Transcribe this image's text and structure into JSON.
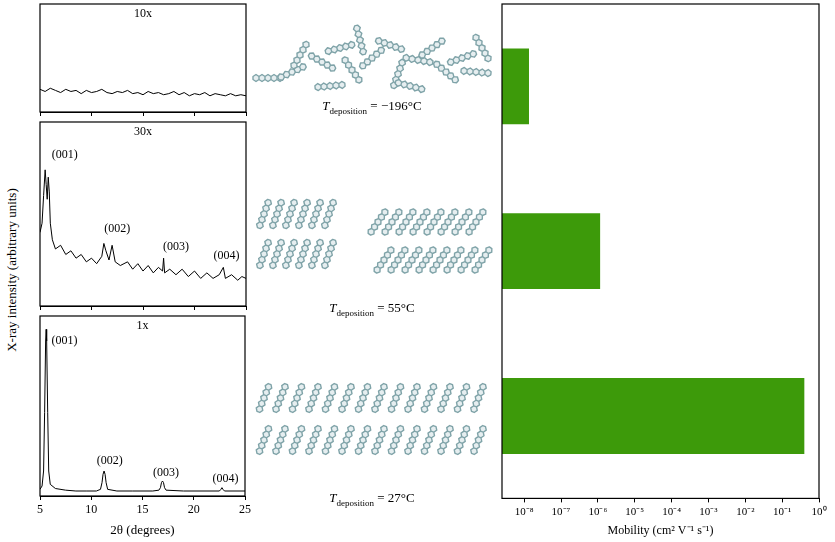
{
  "chart_data": [
    {
      "type": "line",
      "title": "10x",
      "color": "#000000",
      "x": [
        5,
        5.5,
        6,
        6.5,
        7,
        7.5,
        8,
        8.5,
        9,
        9.5,
        10,
        10.5,
        11,
        11.5,
        12,
        12.5,
        13,
        13.5,
        14,
        14.5,
        15,
        15.5,
        16,
        16.5,
        17,
        17.5,
        18,
        18.5,
        19,
        19.5,
        20,
        20.5,
        21,
        21.5,
        22,
        22.5,
        23,
        23.5,
        24,
        24.5,
        25
      ],
      "values": [
        0.21,
        0.19,
        0.22,
        0.2,
        0.18,
        0.21,
        0.19,
        0.2,
        0.17,
        0.2,
        0.18,
        0.19,
        0.21,
        0.18,
        0.17,
        0.19,
        0.18,
        0.2,
        0.17,
        0.18,
        0.16,
        0.19,
        0.17,
        0.18,
        0.16,
        0.17,
        0.19,
        0.16,
        0.18,
        0.15,
        0.17,
        0.16,
        0.18,
        0.15,
        0.17,
        0.16,
        0.15,
        0.17,
        0.15,
        0.16,
        0.15
      ],
      "xlim": [
        5,
        25
      ],
      "xticks": [
        5,
        10,
        15,
        20,
        25
      ],
      "ylim": [
        0,
        1
      ],
      "tick_labels": false
    },
    {
      "type": "line",
      "title": "30x",
      "color": "#000000",
      "ylabel": "X-ray intensity (arbitrary units)",
      "x": [
        5.0,
        5.2,
        5.35,
        5.5,
        5.6,
        5.7,
        5.8,
        5.9,
        6.0,
        6.2,
        6.5,
        7.0,
        7.5,
        8.0,
        8.5,
        9.0,
        9.5,
        10.0,
        10.5,
        11.0,
        11.2,
        11.4,
        11.7,
        12.0,
        12.3,
        12.8,
        13.5,
        14.0,
        14.5,
        15.0,
        15.5,
        16.0,
        16.5,
        16.9,
        17.0,
        17.1,
        17.6,
        18.2,
        18.8,
        19.4,
        20.0,
        20.6,
        21.2,
        21.8,
        22.4,
        22.8,
        23.0,
        23.6,
        24.2,
        24.6,
        25.0
      ],
      "values": [
        0.4,
        0.45,
        0.6,
        0.74,
        0.66,
        0.58,
        0.7,
        0.62,
        0.45,
        0.36,
        0.31,
        0.33,
        0.28,
        0.3,
        0.26,
        0.28,
        0.24,
        0.26,
        0.23,
        0.27,
        0.34,
        0.3,
        0.25,
        0.33,
        0.24,
        0.22,
        0.24,
        0.2,
        0.23,
        0.19,
        0.22,
        0.18,
        0.21,
        0.19,
        0.26,
        0.18,
        0.2,
        0.17,
        0.2,
        0.16,
        0.19,
        0.15,
        0.18,
        0.15,
        0.17,
        0.21,
        0.15,
        0.17,
        0.14,
        0.16,
        0.15
      ],
      "annotations": [
        {
          "text": "(001)",
          "x": 7.4,
          "y": 0.82
        },
        {
          "text": "(002)",
          "x": 12.5,
          "y": 0.42
        },
        {
          "text": "(003)",
          "x": 18.2,
          "y": 0.32
        },
        {
          "text": "(004)",
          "x": 23.1,
          "y": 0.27
        }
      ],
      "xlim": [
        5,
        25
      ],
      "xticks": [
        5,
        10,
        15,
        20,
        25
      ],
      "ylim": [
        0,
        1
      ],
      "tick_labels": false
    },
    {
      "type": "line",
      "title": "1x",
      "color": "#000000",
      "xlabel": "2θ (degrees)",
      "x": [
        5.0,
        5.2,
        5.35,
        5.45,
        5.55,
        5.6,
        5.65,
        5.75,
        5.85,
        6.0,
        6.5,
        7.5,
        8.5,
        9.5,
        10.5,
        10.9,
        11.05,
        11.15,
        11.25,
        11.35,
        11.45,
        11.6,
        12.5,
        14,
        16,
        16.6,
        16.75,
        16.85,
        16.95,
        17.05,
        17.15,
        17.3,
        19,
        21,
        22.5,
        22.65,
        22.75,
        22.85,
        23,
        25
      ],
      "values": [
        0.04,
        0.06,
        0.15,
        0.5,
        0.93,
        1.0,
        0.93,
        0.5,
        0.15,
        0.07,
        0.045,
        0.035,
        0.03,
        0.03,
        0.03,
        0.04,
        0.08,
        0.13,
        0.15,
        0.13,
        0.08,
        0.04,
        0.03,
        0.03,
        0.03,
        0.035,
        0.05,
        0.08,
        0.09,
        0.08,
        0.05,
        0.035,
        0.03,
        0.03,
        0.03,
        0.04,
        0.05,
        0.04,
        0.03,
        0.03
      ],
      "annotations": [
        {
          "text": "(001)",
          "x": 7.4,
          "y": 0.93
        },
        {
          "text": "(002)",
          "x": 11.8,
          "y": 0.21
        },
        {
          "text": "(003)",
          "x": 17.3,
          "y": 0.14
        },
        {
          "text": "(004)",
          "x": 23.1,
          "y": 0.1
        }
      ],
      "xlim": [
        5,
        25
      ],
      "xticks": [
        5,
        10,
        15,
        20,
        25
      ],
      "ylim": [
        0,
        1.08
      ],
      "tick_labels": "x"
    },
    {
      "type": "bar",
      "orientation": "horizontal",
      "log": "x",
      "color": "#3d9a0a",
      "categories": [
        null,
        null,
        null
      ],
      "values": [
        1.35e-08,
        1.15e-06,
        0.4
      ],
      "xlabel": "Mobility (cm² V⁻¹ s⁻¹)",
      "xlim": [
        2.5e-09,
        1
      ],
      "xticks": [
        {
          "value": 1e-08,
          "label": "10⁻⁸"
        },
        {
          "value": 1e-07,
          "label": "10⁻⁷"
        },
        {
          "value": 1e-06,
          "label": "10⁻⁶"
        },
        {
          "value": 1e-05,
          "label": "10⁻⁵"
        },
        {
          "value": 0.0001,
          "label": "10⁻⁴"
        },
        {
          "value": 0.001,
          "label": "10⁻³"
        },
        {
          "value": 0.01,
          "label": "10⁻²"
        },
        {
          "value": 0.1,
          "label": "10⁻¹"
        },
        {
          "value": 1,
          "label": "10⁰"
        }
      ],
      "tick_labels": "x"
    }
  ],
  "diagrams": [
    {
      "symbol": "T",
      "subscript": "deposition",
      "text": "= −196°C"
    },
    {
      "symbol": "T",
      "subscript": "deposition",
      "text": "= 55°C"
    },
    {
      "symbol": "T",
      "subscript": "deposition",
      "text": "= 27°C"
    }
  ]
}
